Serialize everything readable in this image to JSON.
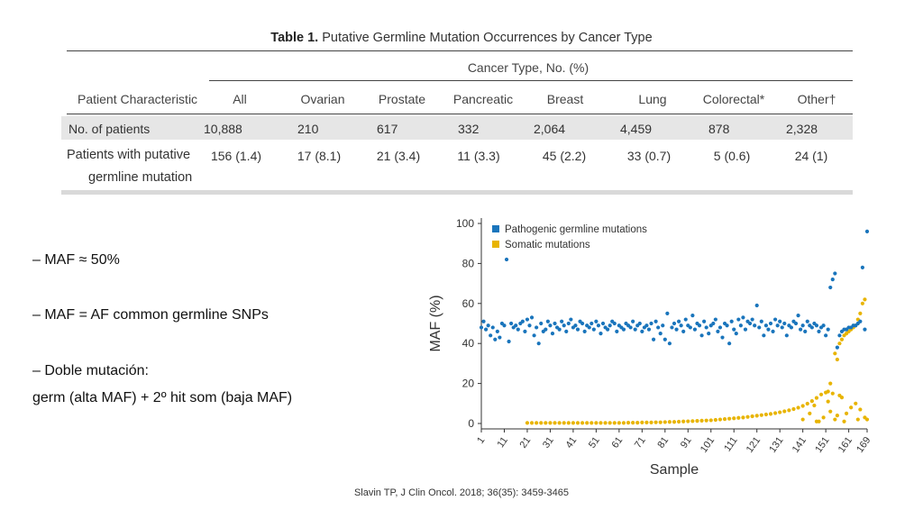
{
  "table": {
    "title_bold": "Table 1.",
    "title_text": "Putative Germline Mutation Occurrences by Cancer Type",
    "group_header": "Cancer Type, No. (%)",
    "characteristic_header": "Patient Characteristic",
    "columns": [
      "All",
      "Ovarian",
      "Prostate",
      "Pancreatic",
      "Breast",
      "Lung",
      "Colorectal*",
      "Other†"
    ],
    "rows": [
      {
        "label": "No. of patients",
        "values": [
          "10,888",
          "210",
          "617",
          "332",
          "2,064",
          "4,459",
          "878",
          "2,328"
        ]
      },
      {
        "label_line1": "Patients with putative",
        "label_line2": "germline mutation",
        "values": [
          "156 (1.4)",
          "17 (8.1)",
          "21 (3.4)",
          "11 (3.3)",
          "45 (2.2)",
          "33 (0.7)",
          "5 (0.6)",
          "24 (1)"
        ]
      }
    ]
  },
  "bullets": {
    "b1": "– MAF ≈ 50%",
    "b2": "– MAF = AF common germline SNPs",
    "b3": "– Doble mutación:",
    "b4": "germ (alta MAF) + 2º hit som (baja MAF)"
  },
  "citation": "Slavin TP, J Clin Oncol. 2018; 36(35): 3459-3465",
  "chart_data": {
    "type": "scatter",
    "xlabel": "Sample",
    "ylabel": "MAF (%)",
    "ylim": [
      0,
      100
    ],
    "yticks": [
      0,
      20,
      40,
      60,
      80,
      100
    ],
    "xlim": [
      1,
      169
    ],
    "xticks": [
      "1",
      "11",
      "21",
      "31",
      "41",
      "51",
      "61",
      "71",
      "81",
      "91",
      "101",
      "111",
      "121",
      "131",
      "141",
      "151",
      "161",
      "169"
    ],
    "legend_position": "top-left",
    "series": [
      {
        "name": "Pathogenic germline mutations",
        "color": "#1a75bc",
        "points": [
          [
            1,
            48
          ],
          [
            2,
            51
          ],
          [
            3,
            47
          ],
          [
            4,
            49
          ],
          [
            5,
            44
          ],
          [
            6,
            48
          ],
          [
            7,
            42
          ],
          [
            8,
            46
          ],
          [
            9,
            43
          ],
          [
            10,
            50
          ],
          [
            11,
            49
          ],
          [
            12,
            82
          ],
          [
            13,
            41
          ],
          [
            14,
            50
          ],
          [
            15,
            48
          ],
          [
            16,
            49
          ],
          [
            17,
            47
          ],
          [
            18,
            50
          ],
          [
            19,
            51
          ],
          [
            20,
            46
          ],
          [
            21,
            52
          ],
          [
            22,
            49
          ],
          [
            23,
            53
          ],
          [
            24,
            44
          ],
          [
            25,
            48
          ],
          [
            26,
            40
          ],
          [
            27,
            50
          ],
          [
            28,
            46
          ],
          [
            29,
            47
          ],
          [
            30,
            51
          ],
          [
            31,
            49
          ],
          [
            32,
            45
          ],
          [
            33,
            50
          ],
          [
            34,
            48
          ],
          [
            35,
            47
          ],
          [
            36,
            51
          ],
          [
            37,
            49
          ],
          [
            38,
            46
          ],
          [
            39,
            50
          ],
          [
            40,
            52
          ],
          [
            41,
            48
          ],
          [
            42,
            49
          ],
          [
            43,
            47
          ],
          [
            44,
            51
          ],
          [
            45,
            50
          ],
          [
            46,
            46
          ],
          [
            47,
            49
          ],
          [
            48,
            48
          ],
          [
            49,
            50
          ],
          [
            50,
            47
          ],
          [
            51,
            51
          ],
          [
            52,
            49
          ],
          [
            53,
            45
          ],
          [
            54,
            50
          ],
          [
            55,
            48
          ],
          [
            56,
            47
          ],
          [
            57,
            49
          ],
          [
            58,
            51
          ],
          [
            59,
            50
          ],
          [
            60,
            46
          ],
          [
            61,
            49
          ],
          [
            62,
            48
          ],
          [
            63,
            47
          ],
          [
            64,
            50
          ],
          [
            65,
            49
          ],
          [
            66,
            48
          ],
          [
            67,
            51
          ],
          [
            68,
            47
          ],
          [
            69,
            49
          ],
          [
            70,
            50
          ],
          [
            71,
            46
          ],
          [
            72,
            48
          ],
          [
            73,
            49
          ],
          [
            74,
            47
          ],
          [
            75,
            50
          ],
          [
            76,
            42
          ],
          [
            77,
            51
          ],
          [
            78,
            48
          ],
          [
            79,
            45
          ],
          [
            80,
            49
          ],
          [
            81,
            42
          ],
          [
            82,
            55
          ],
          [
            83,
            40
          ],
          [
            84,
            48
          ],
          [
            85,
            50
          ],
          [
            86,
            47
          ],
          [
            87,
            51
          ],
          [
            88,
            49
          ],
          [
            89,
            46
          ],
          [
            90,
            52
          ],
          [
            91,
            49
          ],
          [
            92,
            48
          ],
          [
            93,
            54
          ],
          [
            94,
            47
          ],
          [
            95,
            50
          ],
          [
            96,
            49
          ],
          [
            97,
            44
          ],
          [
            98,
            51
          ],
          [
            99,
            48
          ],
          [
            100,
            45
          ],
          [
            101,
            49
          ],
          [
            102,
            50
          ],
          [
            103,
            52
          ],
          [
            104,
            46
          ],
          [
            105,
            48
          ],
          [
            106,
            43
          ],
          [
            107,
            50
          ],
          [
            108,
            49
          ],
          [
            109,
            40
          ],
          [
            110,
            51
          ],
          [
            111,
            47
          ],
          [
            112,
            45
          ],
          [
            113,
            52
          ],
          [
            114,
            49
          ],
          [
            115,
            53
          ],
          [
            116,
            47
          ],
          [
            117,
            51
          ],
          [
            118,
            50
          ],
          [
            119,
            52
          ],
          [
            120,
            49
          ],
          [
            121,
            59
          ],
          [
            122,
            48
          ],
          [
            123,
            51
          ],
          [
            124,
            44
          ],
          [
            125,
            49
          ],
          [
            126,
            47
          ],
          [
            127,
            50
          ],
          [
            128,
            46
          ],
          [
            129,
            52
          ],
          [
            130,
            49
          ],
          [
            131,
            51
          ],
          [
            132,
            48
          ],
          [
            133,
            50
          ],
          [
            134,
            44
          ],
          [
            135,
            49
          ],
          [
            136,
            48
          ],
          [
            137,
            51
          ],
          [
            138,
            50
          ],
          [
            139,
            54
          ],
          [
            140,
            47
          ],
          [
            141,
            49
          ],
          [
            142,
            46
          ],
          [
            143,
            51
          ],
          [
            144,
            49
          ],
          [
            145,
            48
          ],
          [
            146,
            50
          ],
          [
            147,
            49
          ],
          [
            148,
            46
          ],
          [
            149,
            48
          ],
          [
            150,
            49
          ],
          [
            151,
            44
          ],
          [
            152,
            47
          ],
          [
            153,
            68
          ],
          [
            154,
            72
          ],
          [
            155,
            75
          ],
          [
            156,
            38
          ],
          [
            157,
            44
          ],
          [
            158,
            46
          ],
          [
            159,
            47
          ],
          [
            160,
            47
          ],
          [
            161,
            48
          ],
          [
            162,
            48
          ],
          [
            163,
            49
          ],
          [
            164,
            49
          ],
          [
            165,
            50
          ],
          [
            166,
            51
          ],
          [
            167,
            78
          ],
          [
            168,
            47
          ],
          [
            169,
            96
          ]
        ]
      },
      {
        "name": "Somatic mutations",
        "color": "#e8b400",
        "points": [
          [
            21,
            0.3
          ],
          [
            23,
            0.3
          ],
          [
            25,
            0.3
          ],
          [
            27,
            0.3
          ],
          [
            29,
            0.3
          ],
          [
            31,
            0.3
          ],
          [
            33,
            0.3
          ],
          [
            35,
            0.3
          ],
          [
            37,
            0.3
          ],
          [
            39,
            0.3
          ],
          [
            41,
            0.3
          ],
          [
            43,
            0.3
          ],
          [
            45,
            0.3
          ],
          [
            47,
            0.3
          ],
          [
            49,
            0.3
          ],
          [
            51,
            0.3
          ],
          [
            53,
            0.3
          ],
          [
            55,
            0.3
          ],
          [
            57,
            0.3
          ],
          [
            59,
            0.3
          ],
          [
            61,
            0.3
          ],
          [
            63,
            0.3
          ],
          [
            65,
            0.4
          ],
          [
            67,
            0.4
          ],
          [
            69,
            0.4
          ],
          [
            71,
            0.5
          ],
          [
            73,
            0.5
          ],
          [
            75,
            0.5
          ],
          [
            77,
            0.6
          ],
          [
            79,
            0.6
          ],
          [
            81,
            0.7
          ],
          [
            83,
            0.8
          ],
          [
            85,
            0.8
          ],
          [
            87,
            0.9
          ],
          [
            89,
            1.0
          ],
          [
            91,
            1.1
          ],
          [
            93,
            1.2
          ],
          [
            95,
            1.3
          ],
          [
            97,
            1.4
          ],
          [
            99,
            1.5
          ],
          [
            101,
            1.6
          ],
          [
            103,
            1.8
          ],
          [
            105,
            2.0
          ],
          [
            107,
            2.2
          ],
          [
            109,
            2.4
          ],
          [
            111,
            2.6
          ],
          [
            113,
            2.8
          ],
          [
            115,
            3.0
          ],
          [
            117,
            3.3
          ],
          [
            119,
            3.6
          ],
          [
            121,
            3.9
          ],
          [
            123,
            4.2
          ],
          [
            125,
            4.5
          ],
          [
            127,
            4.8
          ],
          [
            129,
            5.2
          ],
          [
            131,
            5.6
          ],
          [
            133,
            6.1
          ],
          [
            135,
            6.6
          ],
          [
            137,
            7.2
          ],
          [
            139,
            7.9
          ],
          [
            141,
            8.8
          ],
          [
            143,
            9.9
          ],
          [
            145,
            11.2
          ],
          [
            147,
            12.8
          ],
          [
            149,
            14.5
          ],
          [
            151,
            15.5
          ],
          [
            152,
            16
          ],
          [
            153,
            20
          ],
          [
            154,
            15
          ],
          [
            155,
            35
          ],
          [
            156,
            32
          ],
          [
            157,
            40
          ],
          [
            158,
            42
          ],
          [
            159,
            44
          ],
          [
            160,
            45
          ],
          [
            161,
            46
          ],
          [
            162,
            47
          ],
          [
            163,
            48
          ],
          [
            164,
            49
          ],
          [
            165,
            52
          ],
          [
            166,
            55
          ],
          [
            167,
            60
          ],
          [
            168,
            62
          ],
          [
            169,
            2
          ],
          [
            141,
            2
          ],
          [
            144,
            5
          ],
          [
            147,
            1
          ],
          [
            150,
            3
          ],
          [
            153,
            6
          ],
          [
            156,
            4
          ],
          [
            159,
            1
          ],
          [
            162,
            8
          ],
          [
            165,
            2
          ],
          [
            168,
            3
          ],
          [
            146,
            9
          ],
          [
            152,
            11
          ],
          [
            158,
            13
          ],
          [
            164,
            10
          ],
          [
            155,
            2
          ],
          [
            160,
            5
          ],
          [
            166,
            7
          ],
          [
            148,
            1
          ],
          [
            157,
            14
          ]
        ]
      }
    ]
  }
}
